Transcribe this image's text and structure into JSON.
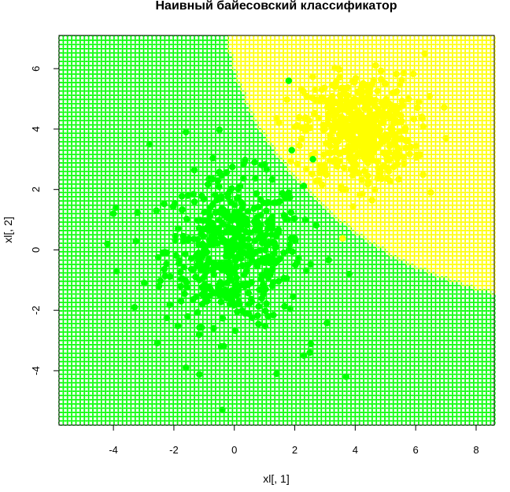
{
  "chart_data": {
    "type": "scatter",
    "title": "Наивный байесовский классификатор",
    "xlabel": "xl[, 1]",
    "ylabel": "xl[, 2]",
    "xlim": [
      -5.8,
      8.6
    ],
    "ylim": [
      -5.8,
      7.1
    ],
    "x_ticks": [
      -4,
      -2,
      0,
      2,
      4,
      6,
      8
    ],
    "y_ticks": [
      -4,
      -2,
      0,
      2,
      4,
      6
    ],
    "grid": false,
    "legend": "none",
    "classes": [
      {
        "color": "#00ff00",
        "center": [
          0,
          0
        ],
        "sd": [
          1.25,
          1.35
        ],
        "n": 500
      },
      {
        "color": "#ffff00",
        "center": [
          4.1,
          4.0
        ],
        "sd": [
          1.0,
          1.0
        ],
        "n": 500
      }
    ],
    "decision_map": {
      "description_class_region": "yellow region where class 2 posterior higher",
      "grid_step": 0.14,
      "marker": "open circle"
    },
    "outliers": [
      {
        "x": -4,
        "y": 1.2,
        "color": "#00ff00"
      },
      {
        "x": -4.2,
        "y": 0.2,
        "color": "#00ff00"
      },
      {
        "x": -3.9,
        "y": -0.7,
        "color": "#00ff00"
      },
      {
        "x": -3.3,
        "y": -1.9,
        "color": "#00ff00"
      },
      {
        "x": -2.8,
        "y": 3.5,
        "color": "#00ff00"
      },
      {
        "x": -1.6,
        "y": 3.9,
        "color": "#00ff00"
      },
      {
        "x": -1.6,
        "y": -3.9,
        "color": "#00ff00"
      },
      {
        "x": -0.4,
        "y": -5.3,
        "color": "#00ff00"
      },
      {
        "x": 1.4,
        "y": -4.1,
        "color": "#00ff00"
      },
      {
        "x": 3.7,
        "y": -4.2,
        "color": "#00ff00"
      },
      {
        "x": 3.8,
        "y": -0.8,
        "color": "#00ff00"
      },
      {
        "x": 2.5,
        "y": -3.4,
        "color": "#00ff00"
      },
      {
        "x": 2.3,
        "y": -3.5,
        "color": "#00ff00"
      },
      {
        "x": 1.8,
        "y": 5.6,
        "color": "#00ff00"
      },
      {
        "x": 2.6,
        "y": 3.0,
        "color": "#00ff00"
      },
      {
        "x": 1.9,
        "y": 3.3,
        "color": "#00ff00"
      },
      {
        "x": 7.0,
        "y": 3.7,
        "color": "#ffff00"
      },
      {
        "x": 6.5,
        "y": 1.9,
        "color": "#ffff00"
      },
      {
        "x": 6.3,
        "y": 6.5,
        "color": "#ffff00"
      }
    ]
  }
}
